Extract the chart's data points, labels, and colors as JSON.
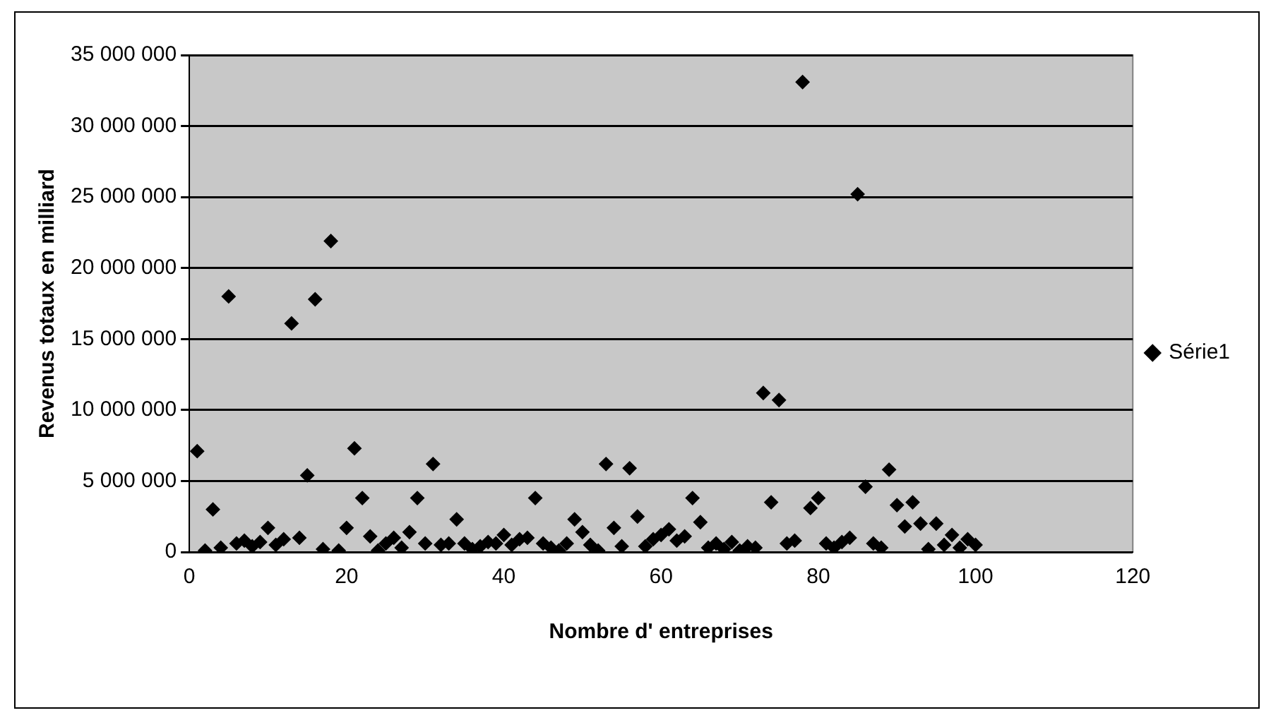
{
  "chart_data": {
    "type": "scatter",
    "xlabel": "Nombre d' entreprises",
    "ylabel": "Revenus totaux en milliard",
    "x": [
      1,
      2,
      3,
      4,
      5,
      6,
      7,
      8,
      9,
      10,
      11,
      12,
      13,
      14,
      15,
      16,
      17,
      18,
      19,
      20,
      21,
      22,
      23,
      24,
      25,
      26,
      27,
      28,
      29,
      30,
      31,
      32,
      33,
      34,
      35,
      36,
      37,
      38,
      39,
      40,
      41,
      42,
      43,
      44,
      45,
      46,
      47,
      48,
      49,
      50,
      51,
      52,
      53,
      54,
      55,
      56,
      57,
      58,
      59,
      60,
      61,
      62,
      63,
      64,
      65,
      66,
      67,
      68,
      69,
      70,
      71,
      72,
      73,
      74,
      75,
      76,
      77,
      78,
      79,
      80,
      81,
      82,
      83,
      84,
      85,
      86,
      87,
      88,
      89,
      90,
      91,
      92,
      93,
      94,
      95,
      96,
      97,
      98,
      99,
      100
    ],
    "series": [
      {
        "name": "Série1",
        "color": "#000000",
        "values": [
          7100000,
          100000,
          3000000,
          300000,
          18000000,
          600000,
          800000,
          400000,
          700000,
          1700000,
          500000,
          900000,
          16100000,
          1000000,
          5400000,
          17800000,
          200000,
          21900000,
          100000,
          1700000,
          7300000,
          3800000,
          1100000,
          100000,
          600000,
          1000000,
          300000,
          1400000,
          3800000,
          600000,
          6200000,
          500000,
          600000,
          2300000,
          600000,
          200000,
          400000,
          700000,
          600000,
          1200000,
          500000,
          900000,
          1000000,
          3800000,
          600000,
          300000,
          100000,
          600000,
          2300000,
          1400000,
          500000,
          100000,
          6200000,
          1700000,
          400000,
          5900000,
          2500000,
          400000,
          900000,
          1200000,
          1600000,
          800000,
          1100000,
          3800000,
          2100000,
          300000,
          600000,
          200000,
          700000,
          100000,
          400000,
          300000,
          11200000,
          3500000,
          10700000,
          600000,
          800000,
          33100000,
          3100000,
          3800000,
          600000,
          300000,
          700000,
          1000000,
          25200000,
          4600000,
          600000,
          300000,
          5800000,
          3300000,
          1800000,
          3500000,
          2000000,
          200000,
          2000000,
          500000,
          1200000,
          300000,
          900000,
          500000
        ]
      }
    ],
    "xlim": [
      0,
      120
    ],
    "xticks": [
      0,
      20,
      40,
      60,
      80,
      100,
      120
    ],
    "ylim": [
      0,
      35000000
    ],
    "yticks": [
      {
        "value": 0,
        "label": "0"
      },
      {
        "value": 5000000,
        "label": "5 000 000"
      },
      {
        "value": 10000000,
        "label": "10 000 000"
      },
      {
        "value": 15000000,
        "label": "15 000 000"
      },
      {
        "value": 20000000,
        "label": "20 000 000"
      },
      {
        "value": 25000000,
        "label": "25 000 000"
      },
      {
        "value": 30000000,
        "label": "30 000 000"
      },
      {
        "value": 35000000,
        "label": "35 000 000"
      }
    ],
    "grid": "y",
    "legend": "right",
    "marker": "diamond"
  }
}
